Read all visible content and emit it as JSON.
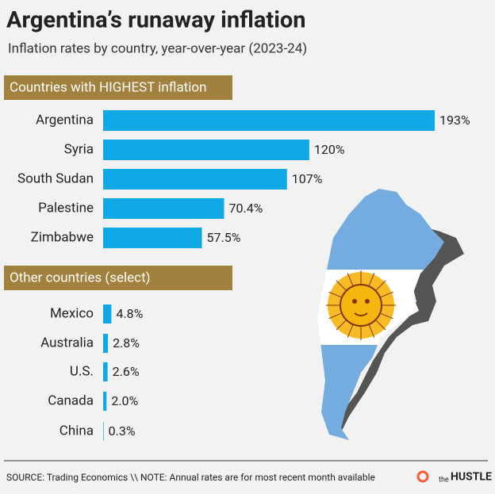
{
  "header": {
    "title": "Argentina’s runaway inflation",
    "subtitle": "Inflation rates by country, year-over-year (2023-24)"
  },
  "chart_data": [
    {
      "type": "bar",
      "title": "Countries with HIGHEST inflation",
      "color": "#10a9e6",
      "categories": [
        "Argentina",
        "Syria",
        "South Sudan",
        "Palestine",
        "Zimbabwe"
      ],
      "values": [
        193,
        120,
        107,
        70.4,
        57.5
      ],
      "value_labels": [
        "193%",
        "120%",
        "107%",
        "70.4%",
        "57.5%"
      ]
    },
    {
      "type": "bar",
      "title": "Other countries (select)",
      "color": "#10a9e6",
      "categories": [
        "Mexico",
        "Australia",
        "U.S.",
        "Canada",
        "China"
      ],
      "values": [
        4.8,
        2.8,
        2.6,
        2.0,
        0.3
      ],
      "value_labels": [
        "4.8%",
        "2.8%",
        "2.6%",
        "2.0%",
        "0.3%"
      ]
    }
  ],
  "footer": {
    "source": "SOURCE: Trading Economics \\\\ NOTE: Annual rates are for most recent month available",
    "logo_small": "the",
    "logo": "HUSTLE"
  }
}
